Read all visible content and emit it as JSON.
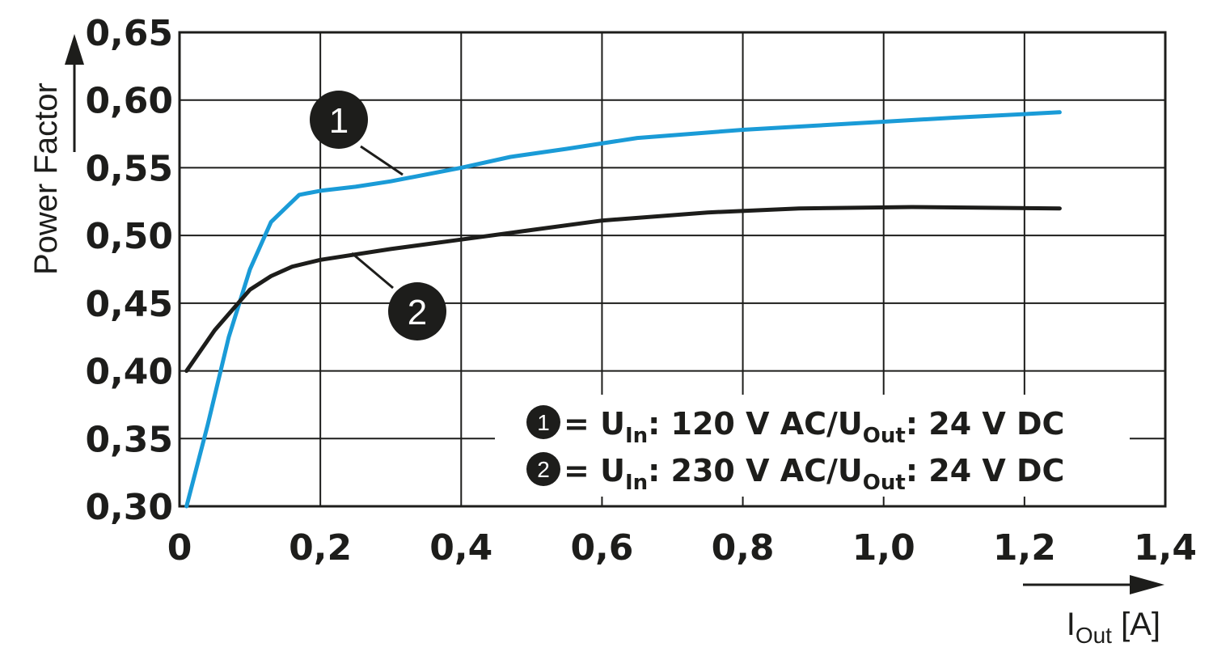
{
  "chart_data": {
    "type": "line",
    "ylabel": "Power Factor",
    "xlabel": {
      "main": "I",
      "sub": "Out",
      "unit": " [A]"
    },
    "xlim": [
      0,
      1.4
    ],
    "ylim": [
      0.3,
      0.65
    ],
    "x_ticks": [
      {
        "v": 0,
        "label": "0"
      },
      {
        "v": 0.2,
        "label": "0,2"
      },
      {
        "v": 0.4,
        "label": "0,4"
      },
      {
        "v": 0.6,
        "label": "0,6"
      },
      {
        "v": 0.8,
        "label": "0,8"
      },
      {
        "v": 1.0,
        "label": "1,0"
      },
      {
        "v": 1.2,
        "label": "1,2"
      },
      {
        "v": 1.4,
        "label": "1,4"
      }
    ],
    "y_ticks": [
      {
        "v": 0.3,
        "label": "0,30"
      },
      {
        "v": 0.35,
        "label": "0,35"
      },
      {
        "v": 0.4,
        "label": "0,40"
      },
      {
        "v": 0.45,
        "label": "0,45"
      },
      {
        "v": 0.5,
        "label": "0,50"
      },
      {
        "v": 0.55,
        "label": "0,55"
      },
      {
        "v": 0.6,
        "label": "0,60"
      },
      {
        "v": 0.65,
        "label": "0,65"
      }
    ],
    "grid": true,
    "series": [
      {
        "marker": "1",
        "color": "#1a9bd7",
        "legend": {
          "prefix": " = U",
          "sub1": "In",
          "mid": ": 120 V AC/U",
          "sub2": "Out",
          "suffix": ": 24 V DC"
        },
        "x": [
          0.01,
          0.04,
          0.07,
          0.1,
          0.13,
          0.17,
          0.2,
          0.25,
          0.3,
          0.4,
          0.47,
          0.55,
          0.65,
          0.8,
          0.9,
          1.0,
          1.1,
          1.25
        ],
        "y": [
          0.3,
          0.36,
          0.425,
          0.475,
          0.51,
          0.53,
          0.533,
          0.536,
          0.54,
          0.55,
          0.558,
          0.564,
          0.572,
          0.578,
          0.581,
          0.584,
          0.587,
          0.591
        ]
      },
      {
        "marker": "2",
        "color": "#1d1d1b",
        "legend": {
          "prefix": " = U",
          "sub1": "In",
          "mid": ": 230 V AC/U",
          "sub2": "Out",
          "suffix": ": 24 V DC"
        },
        "x": [
          0.01,
          0.05,
          0.1,
          0.13,
          0.16,
          0.2,
          0.3,
          0.4,
          0.5,
          0.6,
          0.75,
          0.88,
          1.04,
          1.25
        ],
        "y": [
          0.4,
          0.43,
          0.46,
          0.47,
          0.477,
          0.482,
          0.49,
          0.497,
          0.504,
          0.511,
          0.517,
          0.52,
          0.521,
          0.52
        ]
      }
    ]
  }
}
